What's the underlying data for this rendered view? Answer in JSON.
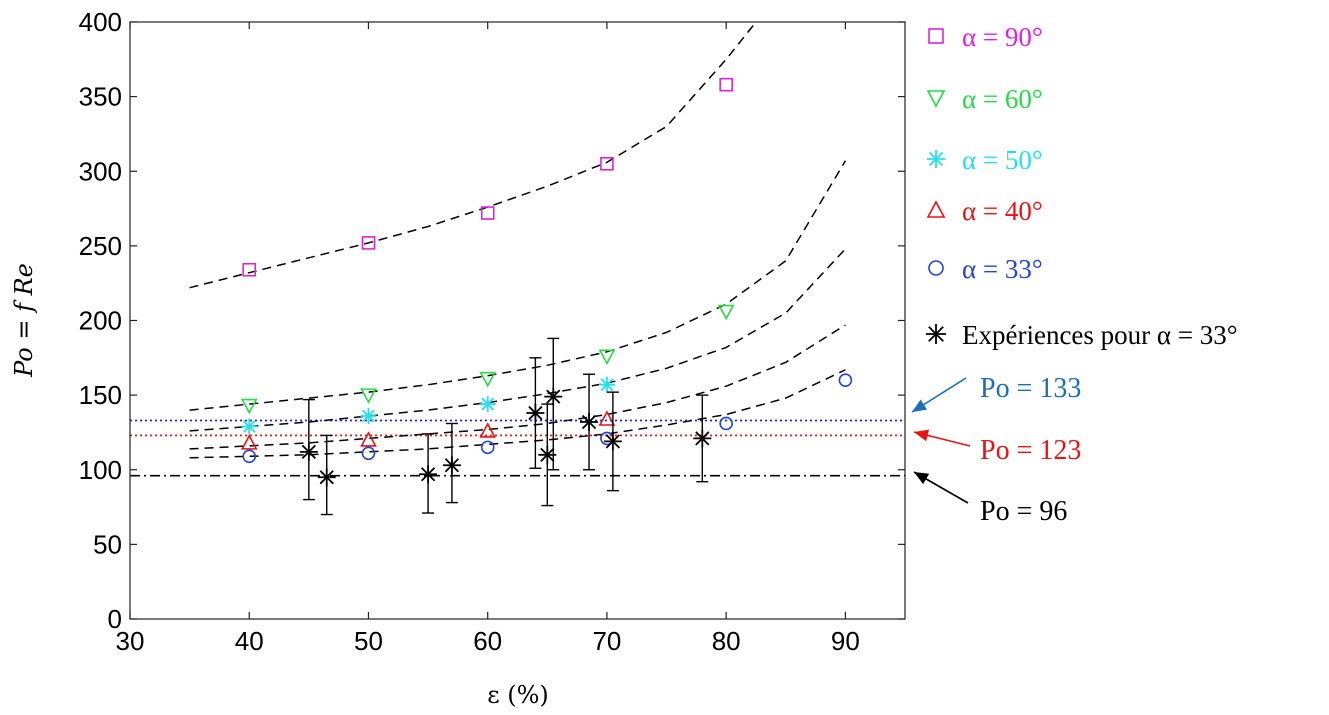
{
  "chart_data": {
    "type": "scatter",
    "xlabel": "ε (%)",
    "ylabel": "Po = f Re",
    "xlim": [
      30,
      95
    ],
    "ylim": [
      0,
      400
    ],
    "xticks": [
      30,
      40,
      50,
      60,
      70,
      80,
      90
    ],
    "yticks": [
      0,
      50,
      100,
      150,
      200,
      250,
      300,
      350,
      400
    ],
    "grid": false,
    "legend_position": "outside-right",
    "series": [
      {
        "name": "α = 90°",
        "marker": "square",
        "color": "#e020e0",
        "x": [
          40,
          50,
          60,
          70,
          80
        ],
        "y": [
          234,
          252,
          272,
          305,
          358
        ]
      },
      {
        "name": "α = 60°",
        "marker": "triangle-down",
        "color": "#22dd44",
        "x": [
          40,
          50,
          60,
          70,
          80
        ],
        "y": [
          143,
          150,
          161,
          176,
          206
        ]
      },
      {
        "name": "α = 50°",
        "marker": "asterisk",
        "color": "#22e0f0",
        "x": [
          40,
          50,
          60,
          70
        ],
        "y": [
          129,
          136,
          144,
          157
        ]
      },
      {
        "name": "α = 40°",
        "marker": "triangle-up",
        "color": "#ee1111",
        "x": [
          40,
          50,
          60,
          70
        ],
        "y": [
          118,
          120,
          126,
          134
        ]
      },
      {
        "name": "α = 33°",
        "marker": "circle",
        "color": "#2244dd",
        "x": [
          40,
          50,
          60,
          70,
          80,
          90
        ],
        "y": [
          109,
          111,
          115,
          121,
          131,
          160
        ]
      },
      {
        "name": "Expériences pour α = 33°",
        "marker": "asterisk",
        "color": "#000000",
        "x": [
          45,
          46.5,
          55,
          57,
          64,
          65,
          65.5,
          68.5,
          70.5,
          78
        ],
        "y": [
          112,
          95,
          97,
          103,
          138,
          110,
          149,
          132,
          119,
          121
        ],
        "err_low": [
          80,
          70,
          71,
          78,
          101,
          76,
          100,
          100,
          86,
          92
        ],
        "err_high": [
          147,
          123,
          124,
          131,
          175,
          144,
          188,
          164,
          152,
          150
        ]
      }
    ],
    "fit_curves": [
      {
        "x": [
          35,
          40,
          45,
          50,
          55,
          60,
          65,
          70,
          75,
          80,
          82.5
        ],
        "y": [
          222,
          232,
          242,
          252,
          263,
          276,
          290,
          306,
          330,
          375,
          400
        ]
      },
      {
        "x": [
          35,
          40,
          45,
          50,
          55,
          60,
          65,
          70,
          75,
          80,
          85,
          90
        ],
        "y": [
          140,
          144,
          148,
          152,
          157,
          163,
          170,
          179,
          192,
          211,
          240,
          307
        ]
      },
      {
        "x": [
          35,
          40,
          45,
          50,
          55,
          60,
          65,
          70,
          75,
          80,
          85,
          90
        ],
        "y": [
          126,
          129,
          132,
          136,
          140,
          145,
          151,
          158,
          168,
          182,
          205,
          248
        ]
      },
      {
        "x": [
          35,
          40,
          45,
          50,
          55,
          60,
          65,
          70,
          75,
          80,
          85,
          90
        ],
        "y": [
          114,
          116,
          118,
          121,
          124,
          127,
          131,
          137,
          145,
          156,
          172,
          197
        ]
      },
      {
        "x": [
          35,
          40,
          45,
          50,
          55,
          60,
          65,
          70,
          75,
          80,
          85,
          90
        ],
        "y": [
          108,
          109,
          110,
          112,
          114,
          117,
          120,
          124,
          130,
          137,
          148,
          167
        ]
      }
    ],
    "reference_lines": [
      {
        "y": 133,
        "style": "dotted",
        "color": "#2222ee",
        "label": "Po = 133",
        "label_color": "#1a6fb8"
      },
      {
        "y": 123,
        "style": "dotted",
        "color": "#ee2222",
        "label": "Po = 123",
        "label_color": "#ee1111"
      },
      {
        "y": 96,
        "style": "dashdot",
        "color": "#000000",
        "label": "Po = 96",
        "label_color": "#000000"
      }
    ]
  },
  "colors": {
    "arrow_133": "#1a6fb8",
    "arrow_123": "#ee1111",
    "arrow_96": "#000000"
  }
}
